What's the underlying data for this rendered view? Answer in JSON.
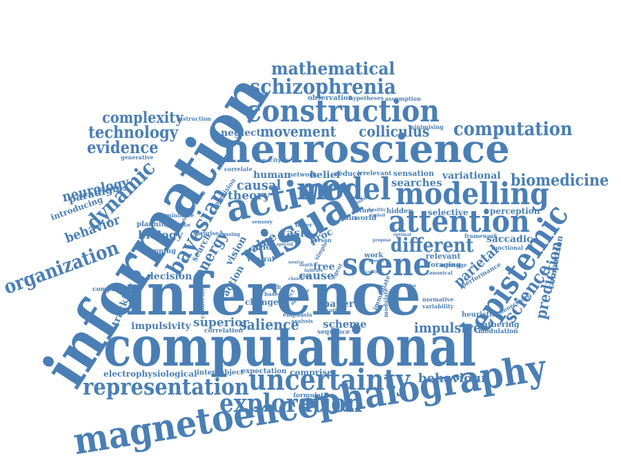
{
  "style": {
    "word_color": "#4a7fb5",
    "background": "#ffffff"
  },
  "words": [
    "information",
    "neuroscience",
    "inference",
    "computational",
    "magnetoencephalography",
    "construction",
    "schizophrenia",
    "mathematical",
    "active",
    "visual",
    "model",
    "modelling",
    "attention",
    "scene",
    "epistemic",
    "uncertainty",
    "representation",
    "exploration",
    "computation",
    "biomedicine",
    "complexity",
    "technology",
    "evidence",
    "neurology",
    "paradigm",
    "dynamic",
    "introducing",
    "behavior",
    "organization",
    "bayesian",
    "biology",
    "energy",
    "movement",
    "colliculus",
    "neglect",
    "causal",
    "theory",
    "value",
    "task",
    "different",
    "science",
    "prediction",
    "comparison",
    "saccadic",
    "parietal",
    "selective",
    "perception",
    "variational",
    "searches",
    "sensation",
    "relevant",
    "foraging",
    "impulsive",
    "impulsivity",
    "superior",
    "salience",
    "scheme",
    "behaviour",
    "electrophysiological",
    "intersubject",
    "expectation",
    "comprise",
    "formulation",
    "decision",
    "mapping",
    "tracking",
    "component",
    "change",
    "cause",
    "free",
    "paper",
    "heuristic",
    "gathering",
    "modulation",
    "human",
    "belief",
    "reduce",
    "irrelevant",
    "network",
    "correlate",
    "capacity",
    "generative",
    "instruction",
    "observation",
    "hypotheses",
    "assumption",
    "minimising",
    "planning",
    "effective",
    "minimize",
    "surprise",
    "search",
    "vision",
    "ventral",
    "prior",
    "action",
    "work",
    "lower",
    "gain",
    "world",
    "future",
    "hidden",
    "person",
    "based",
    "patch",
    "specific",
    "connection",
    "correlation",
    "emphasis",
    "analysis",
    "sequence",
    "location",
    "subject",
    "describe",
    "immediate",
    "modulate",
    "normative",
    "variability",
    "connectivity",
    "performance",
    "message",
    "canonical",
    "functional",
    "framework",
    "optimal",
    "proc",
    "manipulating",
    "precision",
    "sensory",
    "passing",
    "sensed",
    "healthy",
    "exploit",
    "simple",
    "agent",
    "source",
    "control",
    "special",
    "choice",
    "overall",
    "stimulus",
    "propose",
    "depth",
    "indicate",
    "form"
  ]
}
